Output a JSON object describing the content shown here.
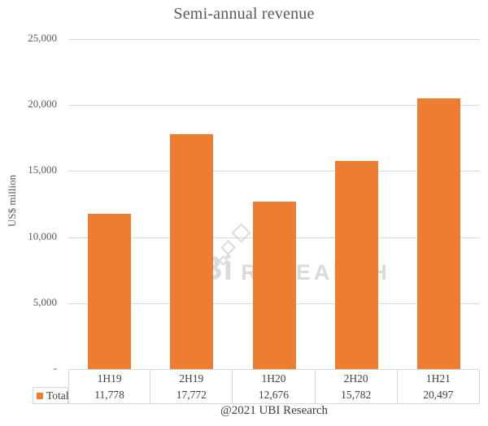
{
  "title": "Semi-annual revenue",
  "y_axis": {
    "label": "US$ million",
    "max": 25000,
    "ticks": [
      {
        "label": "25,000",
        "value": 25000
      },
      {
        "label": "20,000",
        "value": 20000
      },
      {
        "label": "15,000",
        "value": 15000
      },
      {
        "label": "10,000",
        "value": 10000
      },
      {
        "label": "5,000",
        "value": 5000
      },
      {
        "label": "-",
        "value": 0
      }
    ]
  },
  "chart_data": {
    "type": "bar",
    "title": "Semi-annual revenue",
    "xlabel": "",
    "ylabel": "US$ million",
    "ylim": [
      0,
      25000
    ],
    "grid": true,
    "legend_position": "bottom-table",
    "categories": [
      "1H19",
      "2H19",
      "1H20",
      "2H20",
      "1H21"
    ],
    "series": [
      {
        "name": "Total",
        "values": [
          11778,
          17772,
          12676,
          15782,
          20497
        ]
      }
    ],
    "value_labels": [
      "11,778",
      "17,772",
      "12,676",
      "15,782",
      "20,497"
    ],
    "bar_color": "#ed7d31"
  },
  "data_table": {
    "legend_label": "Total",
    "categories": [
      "1H19",
      "2H19",
      "1H20",
      "2H20",
      "1H21"
    ],
    "values": [
      "11,778",
      "17,772",
      "12,676",
      "15,782",
      "20,497"
    ]
  },
  "watermark": {
    "brand": "UBi",
    "suffix": "RESEARCH",
    "logo": "three-cubes-icon"
  },
  "footer": "@2021 UBI Research",
  "colors": {
    "bar": "#ed7d31",
    "gridline": "#d9d9d9",
    "tick_text": "#595959",
    "title_text": "#595959",
    "table_text": "#404040",
    "table_border": "#d9d9d9",
    "watermark": "#d4d4d4"
  }
}
